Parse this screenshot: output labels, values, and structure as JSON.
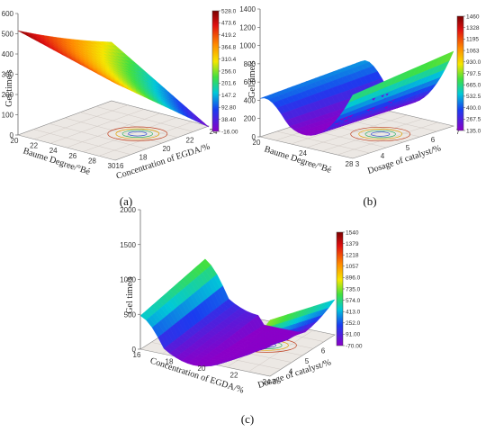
{
  "figure": {
    "panels": [
      {
        "label": "(a)",
        "zlabel": "Gel time/s",
        "xlabel": "Baume Degree/°Bé",
        "ylabel": "Concentration of EGDA/%"
      },
      {
        "label": "(b)",
        "zlabel": "Gel time/s",
        "xlabel": "Baume Degree/°Bé",
        "ylabel": "Dosage of catalyst/%"
      },
      {
        "label": "(c)",
        "zlabel": "Gel time/s",
        "xlabel": "Concentration of EGDA/%",
        "ylabel": "Dosage of catalyst/%"
      }
    ]
  },
  "chart_data": [
    {
      "type": "surface",
      "zlabel": "Gel time/s",
      "xlabel": "Baume Degree/°Bé",
      "ylabel": "Concentration of EGDA/%",
      "x_ticks": [
        "20",
        "22",
        "24",
        "26",
        "28",
        "30"
      ],
      "y_ticks": [
        "16",
        "18",
        "20",
        "22",
        "24"
      ],
      "z_ticks": [
        "0",
        "100",
        "200",
        "300",
        "400",
        "500",
        "600"
      ],
      "xlim": [
        20,
        30
      ],
      "ylim": [
        16,
        24
      ],
      "zlim": [
        0,
        600
      ],
      "colorbar": [
        "528.0",
        "473.6",
        "419.2",
        "364.8",
        "310.4",
        "256.0",
        "201.6",
        "147.2",
        "92.80",
        "38.40",
        "-16.00"
      ],
      "surface_corners": {
        "x20_y16": 515,
        "x30_y16": 380,
        "x20_y24": 250,
        "x30_y24": -16
      }
    },
    {
      "type": "surface",
      "zlabel": "Gel time/s",
      "xlabel": "Baume Degree/°Bé",
      "ylabel": "Dosage of catalyst/%",
      "x_ticks": [
        "20",
        "24",
        "28"
      ],
      "y_ticks": [
        "3",
        "4",
        "5",
        "6",
        "7"
      ],
      "z_ticks": [
        "0",
        "200",
        "400",
        "600",
        "800",
        "1000",
        "1200",
        "1400"
      ],
      "xlim": [
        20,
        30
      ],
      "ylim": [
        3,
        7
      ],
      "zlim": [
        0,
        1400
      ],
      "colorbar": [
        "1460",
        "1328",
        "1195",
        "1063",
        "930.0",
        "797.5",
        "665.0",
        "532.5",
        "400.0",
        "267.5",
        "135.0"
      ],
      "surface_corners": {
        "x20_y3": 420,
        "x30_y3": 1300,
        "x20_y7": 470,
        "x30_y7": 1460,
        "min": 135
      }
    },
    {
      "type": "surface",
      "zlabel": "Gel time/s",
      "xlabel": "Concentration of EGDA/%",
      "ylabel": "Dosage of catalyst/%",
      "x_ticks": [
        "16",
        "18",
        "20",
        "22",
        "24"
      ],
      "y_ticks": [
        "3",
        "4",
        "5",
        "6",
        "7"
      ],
      "z_ticks": [
        "0",
        "500",
        "1000",
        "1500",
        "2000"
      ],
      "xlim": [
        16,
        24
      ],
      "ylim": [
        3,
        7
      ],
      "zlim": [
        0,
        2000
      ],
      "colorbar": [
        "1540",
        "1379",
        "1218",
        "1057",
        "896.0",
        "735.0",
        "574.0",
        "413.0",
        "252.0",
        "91.00",
        "-70.00"
      ],
      "surface_corners": {
        "x16_y3": 480,
        "x24_y3": 1500,
        "x16_y7": 700,
        "x24_y7": 1100,
        "min": -70
      }
    }
  ]
}
